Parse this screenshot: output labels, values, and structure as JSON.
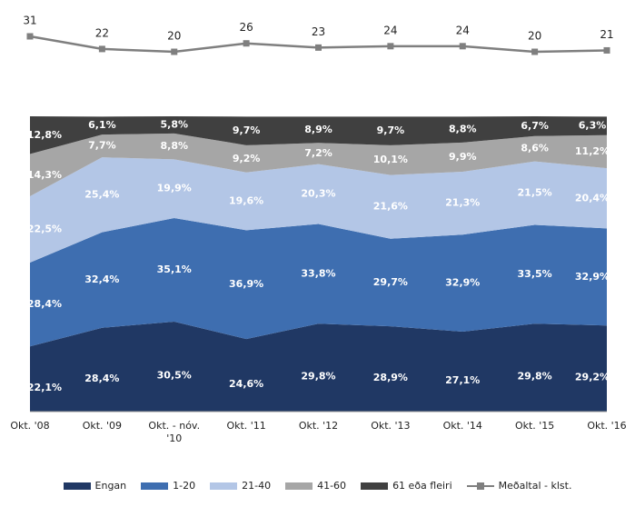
{
  "chart_data": [
    {
      "type": "line",
      "categories": [
        "Okt. '08",
        "Okt. '09",
        "Okt. - nóv. '10",
        "Okt. '11",
        "Okt. '12",
        "Okt. '13",
        "Okt. '14",
        "Okt. '15",
        "Okt. '16"
      ],
      "series": [
        {
          "name": "Meðaltal - klst.",
          "color": "#7f7f7f",
          "values": [
            31,
            22,
            20,
            26,
            23,
            24,
            24,
            20,
            21
          ]
        }
      ]
    },
    {
      "type": "stacked_area",
      "categories": [
        "Okt. '08",
        "Okt. '09",
        "Okt. - nóv. '10",
        "Okt. '11",
        "Okt. '12",
        "Okt. '13",
        "Okt. '14",
        "Okt. '15",
        "Okt. '16"
      ],
      "series": [
        {
          "name": "Engan",
          "color": "#203864",
          "values": [
            22.1,
            28.4,
            30.5,
            24.6,
            29.8,
            28.9,
            27.1,
            29.8,
            29.2
          ],
          "value_labels": [
            "22,1%",
            "28,4%",
            "30,5%",
            "24,6%",
            "29,8%",
            "28,9%",
            "27,1%",
            "29,8%",
            "29,2%"
          ]
        },
        {
          "name": "1-20",
          "color": "#3e6eb0",
          "values": [
            28.4,
            32.4,
            35.1,
            36.9,
            33.8,
            29.7,
            32.9,
            33.5,
            32.9
          ],
          "value_labels": [
            "28,4%",
            "32,4%",
            "35,1%",
            "36,9%",
            "33,8%",
            "29,7%",
            "32,9%",
            "33,5%",
            "32,9%"
          ]
        },
        {
          "name": "21-40",
          "color": "#b3c6e6",
          "values": [
            22.5,
            25.4,
            19.9,
            19.6,
            20.3,
            21.6,
            21.3,
            21.5,
            20.4
          ],
          "value_labels": [
            "22,5%",
            "25,4%",
            "19,9%",
            "19,6%",
            "20,3%",
            "21,6%",
            "21,3%",
            "21,5%",
            "20,4%"
          ]
        },
        {
          "name": "41-60",
          "color": "#a6a6a6",
          "values": [
            14.3,
            7.7,
            8.8,
            9.2,
            7.2,
            10.1,
            9.9,
            8.6,
            11.2
          ],
          "value_labels": [
            "14,3%",
            "7,7%",
            "8,8%",
            "9,2%",
            "7,2%",
            "10,1%",
            "9,9%",
            "8,6%",
            "11,2%"
          ]
        },
        {
          "name": "61 eða fleiri",
          "color": "#404040",
          "values": [
            12.8,
            6.1,
            5.8,
            9.7,
            8.9,
            9.7,
            8.8,
            6.7,
            6.3
          ],
          "value_labels": [
            "12,8%",
            "6,1%",
            "5,8%",
            "9,7%",
            "8,9%",
            "9,7%",
            "8,8%",
            "6,7%",
            "6,3%"
          ]
        }
      ]
    }
  ]
}
